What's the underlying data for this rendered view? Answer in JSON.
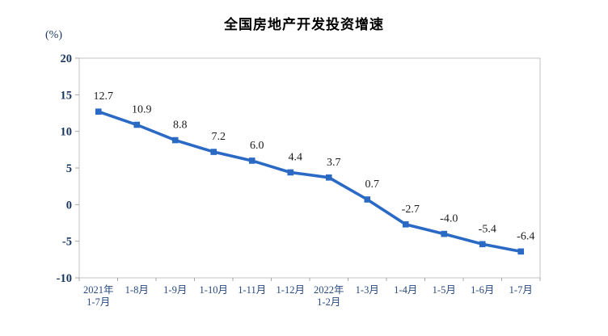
{
  "chart_data": {
    "type": "line",
    "title": "全国房地产开发投资增速",
    "unit_label": "(%)",
    "categories": [
      "2021年\n1-7月",
      "1-8月",
      "1-9月",
      "1-10月",
      "1-11月",
      "1-12月",
      "2022年\n1-2月",
      "1-3月",
      "1-4月",
      "1-5月",
      "1-6月",
      "1-7月"
    ],
    "values": [
      12.7,
      10.9,
      8.8,
      7.2,
      6.0,
      4.4,
      3.7,
      0.7,
      -2.7,
      -4.0,
      -5.4,
      -6.4
    ],
    "point_labels": [
      "12.7",
      "10.9",
      "8.8",
      "7.2",
      "6.0",
      "4.4",
      "3.7",
      "0.7",
      "-2.7",
      "-4.0",
      "-5.4",
      "-6.4"
    ],
    "ylim": [
      -10,
      20
    ],
    "yticks": [
      20,
      15,
      10,
      5,
      0,
      -5,
      -10
    ],
    "grid": false,
    "legend": "none",
    "colors": {
      "line": "#2A6AC5",
      "marker": "#2A6AC5",
      "axis_border": "#C3C3C3",
      "tick": "#A6A6A6",
      "y_tick_label": "#17365D",
      "x_tick_label": "#28497F",
      "data_label": "#1A1A1A",
      "title": "#000000"
    }
  }
}
